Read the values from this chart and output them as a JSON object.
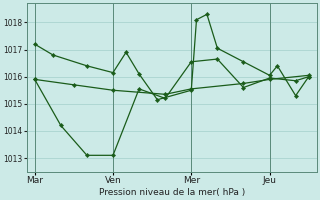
{
  "background_color": "#cceae7",
  "grid_color": "#aad4d0",
  "line_color": "#1a5c1a",
  "xlabel": "Pression niveau de la mer( hPa )",
  "ylim": [
    1012.5,
    1018.7
  ],
  "yticks": [
    1013,
    1014,
    1015,
    1016,
    1017,
    1018
  ],
  "x_tick_labels": [
    "Mar",
    "Ven",
    "Mer",
    "Jeu"
  ],
  "x_tick_positions": [
    0,
    3,
    6,
    9
  ],
  "vline_positions": [
    0,
    3,
    6,
    9
  ],
  "xlim": [
    -0.3,
    10.8
  ],
  "series": [
    {
      "x": [
        0,
        0.7,
        2,
        3,
        3.5,
        4,
        4.7,
        6,
        6.2,
        6.6,
        7,
        8,
        9,
        9.3,
        10,
        10.5
      ],
      "y": [
        1017.2,
        1016.8,
        1016.4,
        1016.15,
        1016.9,
        1016.1,
        1015.15,
        1015.5,
        1018.1,
        1018.3,
        1017.05,
        1016.55,
        1016.05,
        1016.4,
        1015.3,
        1016.0
      ]
    },
    {
      "x": [
        0,
        1.5,
        3,
        5,
        6,
        8,
        9,
        10.5
      ],
      "y": [
        1015.9,
        1015.7,
        1015.5,
        1015.35,
        1015.55,
        1015.75,
        1015.9,
        1016.05
      ]
    },
    {
      "x": [
        0,
        1,
        2,
        3,
        4,
        5,
        6,
        7,
        8,
        9,
        10,
        10.5
      ],
      "y": [
        1015.9,
        1014.2,
        1013.1,
        1013.1,
        1015.55,
        1015.2,
        1016.55,
        1016.65,
        1015.6,
        1015.95,
        1015.85,
        1016.0
      ]
    }
  ]
}
